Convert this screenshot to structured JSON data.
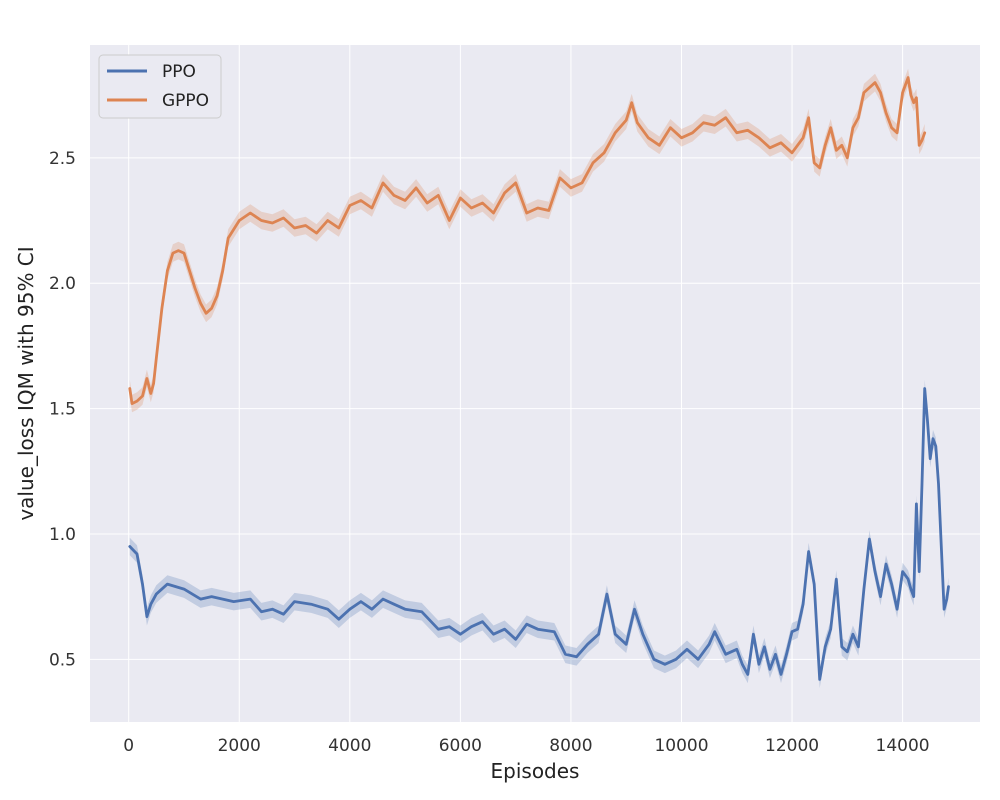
{
  "chart_data": {
    "type": "line",
    "xlabel": "Episodes",
    "ylabel": "value_loss IQM with 95% CI",
    "xlim": [
      -700,
      15400
    ],
    "ylim": [
      0.25,
      2.95
    ],
    "xticks": [
      0,
      2000,
      4000,
      6000,
      8000,
      10000,
      12000,
      14000
    ],
    "xtick_labels": [
      "0",
      "2000",
      "4000",
      "6000",
      "8000",
      "10000",
      "12000",
      "14000"
    ],
    "yticks": [
      0.5,
      1.0,
      1.5,
      2.0,
      2.5
    ],
    "ytick_labels": [
      "0.5",
      "1.0",
      "1.5",
      "2.0",
      "2.5"
    ],
    "grid": true,
    "legend_position": "top-left",
    "series": [
      {
        "name": "PPO",
        "color": "#4c72b0",
        "x": [
          20,
          150,
          250,
          330,
          400,
          500,
          700,
          1000,
          1300,
          1500,
          1700,
          1900,
          2200,
          2400,
          2600,
          2800,
          3000,
          3300,
          3600,
          3800,
          4000,
          4200,
          4400,
          4600,
          4800,
          5000,
          5300,
          5600,
          5800,
          6000,
          6200,
          6400,
          6600,
          6800,
          7000,
          7200,
          7400,
          7700,
          7900,
          8100,
          8300,
          8500,
          8650,
          8800,
          9000,
          9150,
          9300,
          9500,
          9700,
          9900,
          10100,
          10300,
          10500,
          10600,
          10800,
          11000,
          11100,
          11200,
          11300,
          11400,
          11500,
          11600,
          11700,
          11800,
          11900,
          12000,
          12100,
          12200,
          12300,
          12400,
          12500,
          12600,
          12700,
          12800,
          12900,
          13000,
          13100,
          13200,
          13300,
          13400,
          13500,
          13600,
          13700,
          13800,
          13900,
          14000,
          14100,
          14150,
          14200,
          14250,
          14300,
          14350,
          14400,
          14450,
          14500,
          14550,
          14600,
          14650,
          14700,
          14750,
          14800,
          14830
        ],
        "y": [
          0.95,
          0.92,
          0.8,
          0.67,
          0.72,
          0.76,
          0.8,
          0.78,
          0.74,
          0.75,
          0.74,
          0.73,
          0.74,
          0.69,
          0.7,
          0.68,
          0.73,
          0.72,
          0.7,
          0.66,
          0.7,
          0.73,
          0.7,
          0.74,
          0.72,
          0.7,
          0.69,
          0.62,
          0.63,
          0.6,
          0.63,
          0.65,
          0.6,
          0.62,
          0.58,
          0.64,
          0.62,
          0.61,
          0.52,
          0.51,
          0.56,
          0.6,
          0.76,
          0.6,
          0.56,
          0.7,
          0.6,
          0.5,
          0.48,
          0.5,
          0.54,
          0.5,
          0.56,
          0.61,
          0.52,
          0.54,
          0.48,
          0.44,
          0.6,
          0.48,
          0.55,
          0.46,
          0.52,
          0.44,
          0.52,
          0.61,
          0.62,
          0.72,
          0.93,
          0.8,
          0.42,
          0.55,
          0.62,
          0.82,
          0.55,
          0.53,
          0.6,
          0.55,
          0.78,
          0.98,
          0.85,
          0.75,
          0.88,
          0.8,
          0.7,
          0.85,
          0.82,
          0.78,
          0.75,
          1.12,
          0.85,
          1.2,
          1.58,
          1.45,
          1.3,
          1.38,
          1.35,
          1.2,
          0.95,
          0.7,
          0.74,
          0.79
        ]
      },
      {
        "name": "GPPO",
        "color": "#dd8452",
        "x": [
          20,
          60,
          150,
          250,
          330,
          400,
          450,
          500,
          600,
          700,
          800,
          900,
          1000,
          1100,
          1200,
          1300,
          1400,
          1500,
          1600,
          1700,
          1800,
          2000,
          2200,
          2400,
          2600,
          2800,
          3000,
          3200,
          3400,
          3600,
          3800,
          4000,
          4200,
          4400,
          4600,
          4800,
          5000,
          5200,
          5400,
          5600,
          5800,
          6000,
          6200,
          6400,
          6600,
          6800,
          7000,
          7200,
          7400,
          7600,
          7800,
          8000,
          8200,
          8400,
          8600,
          8800,
          9000,
          9100,
          9200,
          9400,
          9600,
          9800,
          10000,
          10200,
          10400,
          10600,
          10800,
          11000,
          11200,
          11400,
          11600,
          11800,
          12000,
          12200,
          12300,
          12400,
          12500,
          12600,
          12700,
          12800,
          12900,
          13000,
          13100,
          13200,
          13300,
          13400,
          13500,
          13600,
          13700,
          13800,
          13900,
          14000,
          14100,
          14150,
          14200,
          14250,
          14300,
          14350,
          14400
        ],
        "y": [
          1.58,
          1.52,
          1.53,
          1.55,
          1.62,
          1.56,
          1.6,
          1.7,
          1.9,
          2.05,
          2.12,
          2.13,
          2.12,
          2.05,
          1.98,
          1.92,
          1.88,
          1.9,
          1.95,
          2.05,
          2.18,
          2.25,
          2.28,
          2.25,
          2.24,
          2.26,
          2.22,
          2.23,
          2.2,
          2.25,
          2.22,
          2.31,
          2.33,
          2.3,
          2.4,
          2.35,
          2.33,
          2.38,
          2.32,
          2.35,
          2.25,
          2.34,
          2.3,
          2.32,
          2.28,
          2.36,
          2.4,
          2.28,
          2.3,
          2.29,
          2.42,
          2.38,
          2.4,
          2.48,
          2.52,
          2.6,
          2.65,
          2.72,
          2.64,
          2.58,
          2.55,
          2.62,
          2.58,
          2.6,
          2.64,
          2.63,
          2.66,
          2.6,
          2.61,
          2.58,
          2.54,
          2.56,
          2.52,
          2.58,
          2.66,
          2.48,
          2.46,
          2.55,
          2.62,
          2.53,
          2.55,
          2.5,
          2.62,
          2.66,
          2.76,
          2.78,
          2.8,
          2.76,
          2.68,
          2.62,
          2.6,
          2.76,
          2.82,
          2.75,
          2.72,
          2.74,
          2.55,
          2.57,
          2.6
        ]
      }
    ]
  }
}
